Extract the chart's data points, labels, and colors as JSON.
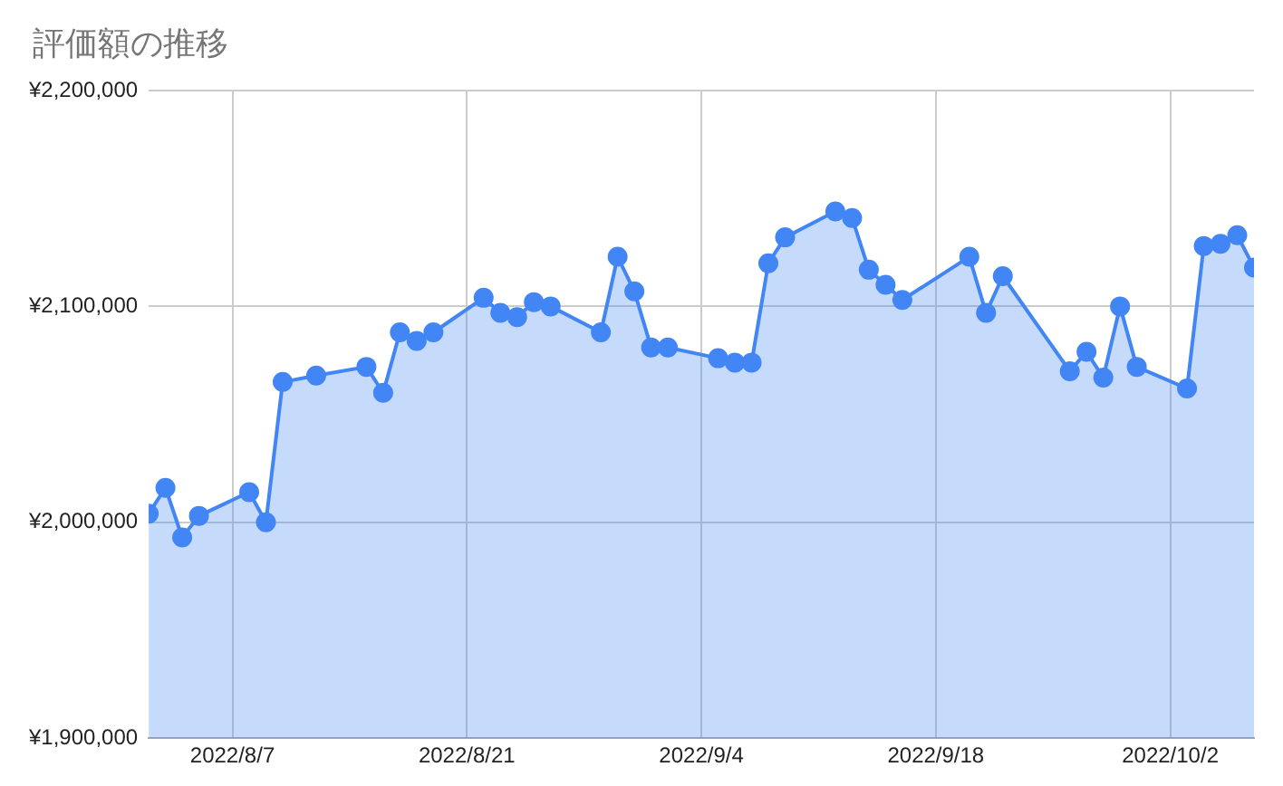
{
  "chart_data": {
    "type": "area",
    "title": "評価額の推移",
    "x": [
      "2022-08-02",
      "2022-08-03",
      "2022-08-04",
      "2022-08-05",
      "2022-08-08",
      "2022-08-09",
      "2022-08-10",
      "2022-08-12",
      "2022-08-15",
      "2022-08-16",
      "2022-08-17",
      "2022-08-18",
      "2022-08-19",
      "2022-08-22",
      "2022-08-23",
      "2022-08-24",
      "2022-08-25",
      "2022-08-26",
      "2022-08-29",
      "2022-08-30",
      "2022-08-31",
      "2022-09-01",
      "2022-09-02",
      "2022-09-05",
      "2022-09-06",
      "2022-09-07",
      "2022-09-08",
      "2022-09-09",
      "2022-09-12",
      "2022-09-13",
      "2022-09-14",
      "2022-09-15",
      "2022-09-16",
      "2022-09-20",
      "2022-09-21",
      "2022-09-22",
      "2022-09-26",
      "2022-09-27",
      "2022-09-28",
      "2022-09-29",
      "2022-09-30",
      "2022-10-03",
      "2022-10-04",
      "2022-10-05",
      "2022-10-06",
      "2022-10-07"
    ],
    "series": [
      {
        "color": "#4285f4",
        "values": [
          2004000,
          2016000,
          1993000,
          2003000,
          2014000,
          2000000,
          2065000,
          2068000,
          2072000,
          2060000,
          2088000,
          2084000,
          2088000,
          2104000,
          2097000,
          2095000,
          2102000,
          2100000,
          2088000,
          2123000,
          2107000,
          2081000,
          2081000,
          2076000,
          2074000,
          2074000,
          2120000,
          2132000,
          2144000,
          2141000,
          2117000,
          2110000,
          2103000,
          2123000,
          2097000,
          2114000,
          2070000,
          2079000,
          2067000,
          2100000,
          2072000,
          2062000,
          2128000,
          2129000,
          2133000,
          2118000
        ]
      }
    ],
    "xlim": [
      "2022-08-02",
      "2022-10-07"
    ],
    "xticks": [
      {
        "value": "2022-08-07",
        "label": "2022/8/7"
      },
      {
        "value": "2022-08-21",
        "label": "2022/8/21"
      },
      {
        "value": "2022-09-04",
        "label": "2022/9/4"
      },
      {
        "value": "2022-09-18",
        "label": "2022/9/18"
      },
      {
        "value": "2022-10-02",
        "label": "2022/10/2"
      }
    ],
    "ylim": [
      1900000,
      2200000
    ],
    "yticks": [
      {
        "value": 1900000,
        "label": "¥1,900,000"
      },
      {
        "value": 2000000,
        "label": "¥2,000,000"
      },
      {
        "value": 2100000,
        "label": "¥2,100,000"
      },
      {
        "value": 2200000,
        "label": "¥2,200,000"
      }
    ],
    "grid": true,
    "legend": false,
    "marker": "circle",
    "line_style": "solid"
  }
}
